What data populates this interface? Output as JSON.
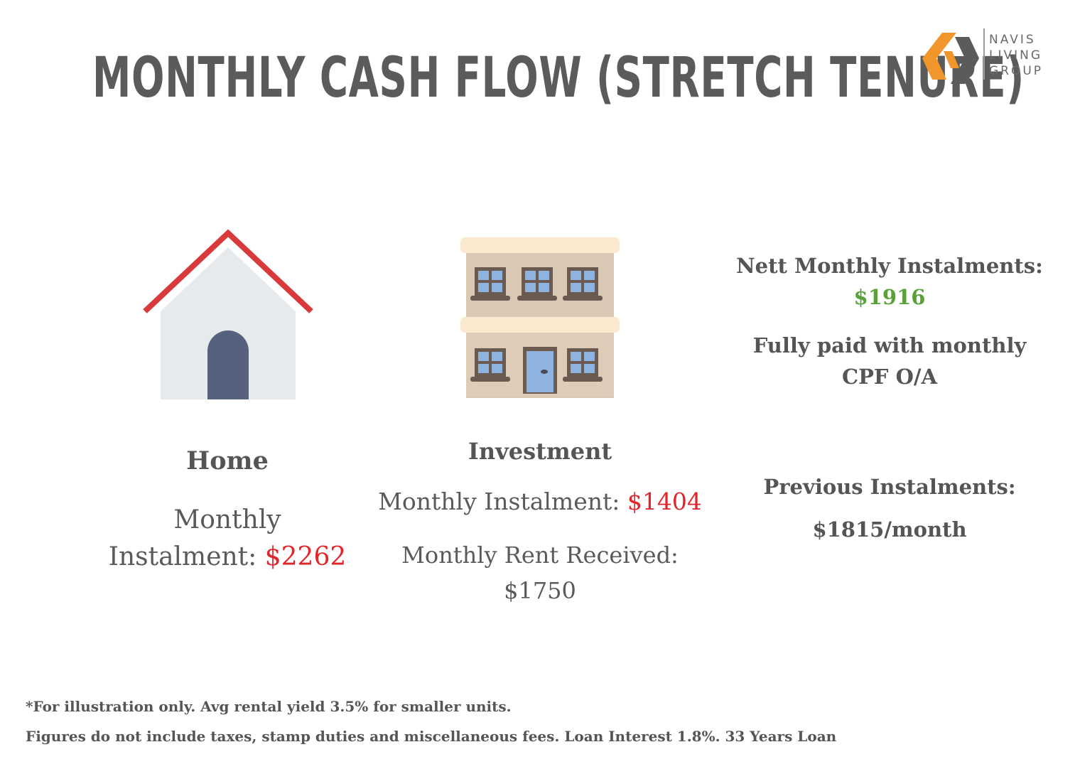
{
  "title": "MONTHLY CASH FLOW (STRETCH TENURE)",
  "logo": {
    "line1": "NAVIS",
    "line2": "LIVING",
    "line3": "GROUP",
    "colors": {
      "orange": "#f0962b",
      "gray": "#5b5b5b"
    }
  },
  "home": {
    "heading": "Home",
    "instalment_label_line1": "Monthly",
    "instalment_label_line2": "Instalment: ",
    "instalment_value": "$2262",
    "icon": "house-icon"
  },
  "investment": {
    "heading": "Investment",
    "instalment_label": "Monthly Instalment: ",
    "instalment_value": "$1404",
    "rent_label": "Monthly Rent Received:",
    "rent_value": "$1750",
    "icon": "apartment-building-icon"
  },
  "summary": {
    "nett_label": "Nett Monthly Instalments:",
    "nett_value": "$1916",
    "paid_line1": "Fully paid with monthly",
    "paid_line2": "CPF O/A",
    "previous_label": "Previous Instalments:",
    "previous_value": "$1815/month"
  },
  "footnotes": {
    "line1": "*For illustration only. Avg rental yield 3.5% for smaller units.",
    "line2": "Figures do not include taxes, stamp duties and miscellaneous fees. Loan Interest 1.8%. 33 Years Loan"
  },
  "colors": {
    "negative": "#e0262a",
    "positive": "#5aa13a",
    "text": "#5a5a5a"
  }
}
